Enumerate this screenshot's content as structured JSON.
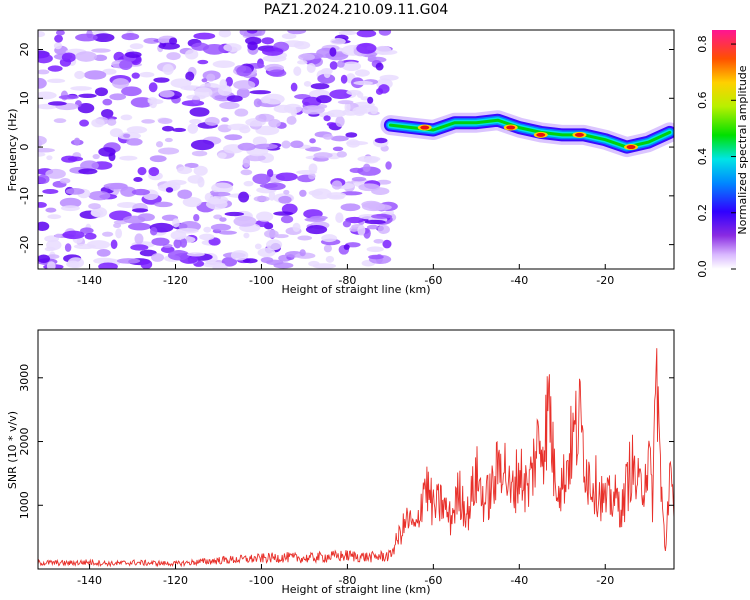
{
  "title": "PAZ1.2024.210.09.11.G04",
  "chart_data": [
    {
      "type": "heatmap",
      "xlabel": "Height of straight line (km)",
      "ylabel": "Frequency (Hz)",
      "xlim": [
        -152,
        -4
      ],
      "ylim": [
        -25,
        24
      ],
      "xticks": [
        -140,
        -120,
        -100,
        -80,
        -60,
        -40,
        -20
      ],
      "yticks": [
        -20,
        -10,
        0,
        10,
        20
      ],
      "colorbar": {
        "label": "Normalized spectral amplitude",
        "range": [
          0.0,
          0.85
        ],
        "ticks": [
          0.0,
          0.2,
          0.4,
          0.6,
          0.8
        ]
      },
      "noise_region": [
        -152,
        -70
      ],
      "signal_track": {
        "x": [
          -70,
          -65,
          -60,
          -55,
          -50,
          -45,
          -40,
          -35,
          -30,
          -25,
          -20,
          -15,
          -10,
          -5
        ],
        "frequency": [
          4.5,
          4,
          3.5,
          5,
          5,
          5.5,
          4,
          3,
          2.5,
          2.5,
          1.5,
          0,
          1,
          3
        ]
      },
      "peak_markers": [
        {
          "x": -62,
          "frequency": 4
        },
        {
          "x": -42,
          "frequency": 4
        },
        {
          "x": -35,
          "frequency": 2.5
        },
        {
          "x": -26,
          "frequency": 2.5
        },
        {
          "x": -14,
          "frequency": 0
        }
      ]
    },
    {
      "type": "line",
      "xlabel": "Height of straight line (km)",
      "ylabel": "SNR (10 * v/v)",
      "xlim": [
        -152,
        -4
      ],
      "ylim": [
        0,
        3750
      ],
      "xticks": [
        -140,
        -120,
        -100,
        -80,
        -60,
        -40,
        -20
      ],
      "yticks": [
        1000,
        2000,
        3000
      ],
      "series": [
        {
          "color": "#e8302a",
          "x": [
            -152,
            -145,
            -140,
            -135,
            -130,
            -125,
            -120,
            -115,
            -110,
            -105,
            -100,
            -95,
            -90,
            -85,
            -80,
            -75,
            -70,
            -68,
            -66,
            -64,
            -62,
            -60,
            -58,
            -56,
            -54,
            -52,
            -50,
            -48,
            -46,
            -44,
            -42,
            -40,
            -38,
            -36,
            -34,
            -33,
            -32,
            -30,
            -28,
            -26,
            -24,
            -22,
            -20,
            -18,
            -16,
            -14,
            -12,
            -10,
            -9,
            -8,
            -7,
            -6,
            -5,
            -4
          ],
          "values": [
            120,
            110,
            130,
            100,
            120,
            110,
            100,
            130,
            160,
            180,
            200,
            220,
            200,
            230,
            250,
            220,
            250,
            600,
            900,
            700,
            1600,
            1100,
            1200,
            900,
            1400,
            1000,
            1700,
            1200,
            1500,
            2100,
            1300,
            1800,
            1400,
            2200,
            2400,
            3100,
            1800,
            1500,
            2200,
            2700,
            1700,
            1500,
            1200,
            1300,
            1100,
            1900,
            1400,
            2000,
            1300,
            3750,
            1400,
            300,
            1900,
            800
          ]
        }
      ]
    }
  ]
}
